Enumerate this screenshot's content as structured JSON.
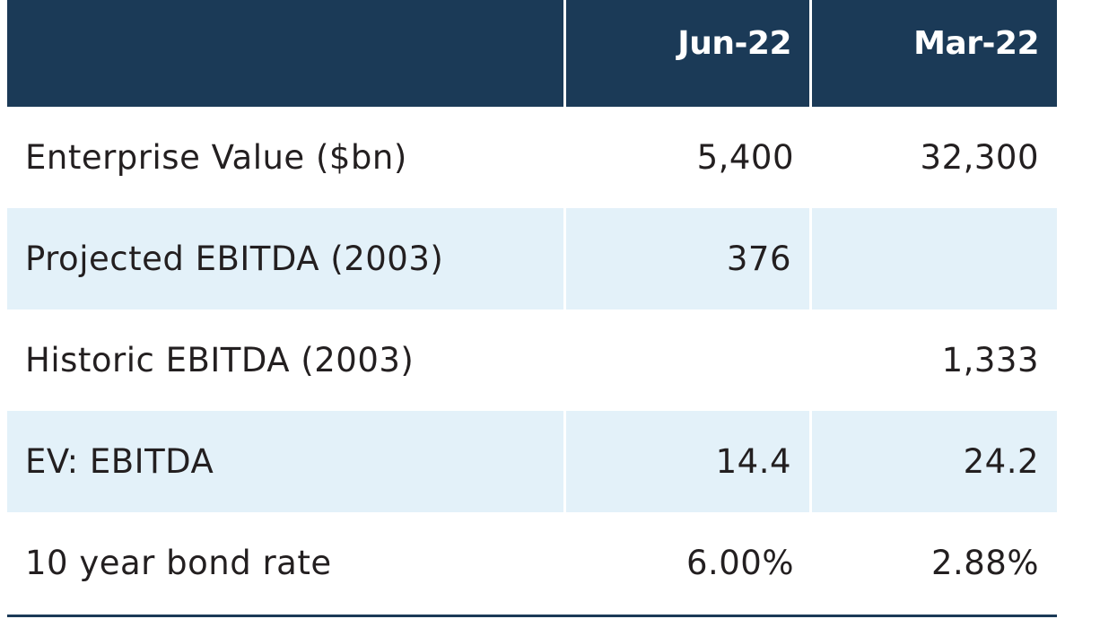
{
  "table": {
    "columns": [
      "",
      "Jun-22",
      "Mar-22"
    ],
    "rows": [
      {
        "label": "Enterprise Value ($bn)",
        "jun22": "5,400",
        "mar22": "32,300"
      },
      {
        "label": "Projected EBITDA (2003)",
        "jun22": "376",
        "mar22": ""
      },
      {
        "label": "Historic EBITDA (2003)",
        "jun22": "",
        "mar22": "1,333"
      },
      {
        "label": "EV: EBITDA",
        "jun22": "14.4",
        "mar22": "24.2"
      },
      {
        "label": "10 year bond rate",
        "jun22": "6.00%",
        "mar22": "2.88%"
      }
    ]
  },
  "colors": {
    "header_bg": "#1b3a57",
    "shaded_row_bg": "#e3f1f9",
    "text": "#231f20"
  }
}
